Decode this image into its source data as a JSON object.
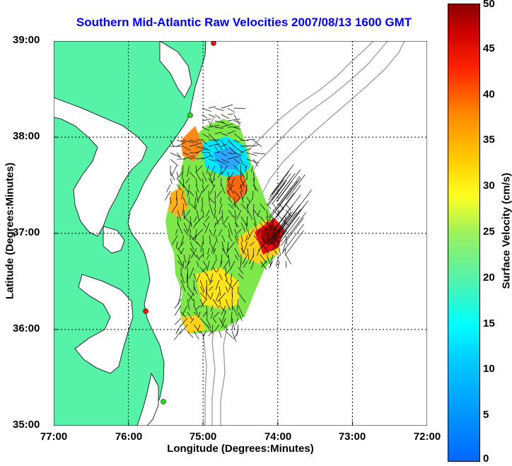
{
  "title": "Southern Mid-Atlantic Raw Velocities 2007/08/13 1600 GMT",
  "x_axis": {
    "label": "Longitude (Degrees:Minutes)",
    "ticks": [
      "77:00",
      "76:00",
      "75:00",
      "74:00",
      "73:00",
      "72:00"
    ]
  },
  "y_axis": {
    "label": "Latitude (Degrees:Minutes)",
    "ticks": [
      "39:00",
      "38:00",
      "37:00",
      "36:00",
      "35:00"
    ]
  },
  "colorbar": {
    "label": "Surface Velocity (cm/s)",
    "ticks": [
      "50",
      "45",
      "40",
      "35",
      "30",
      "25",
      "20",
      "15",
      "10",
      "5",
      "0"
    ],
    "min": 0,
    "max": 50
  },
  "colors": {
    "land": "#55f2a8",
    "bathymetry": "#9a9a9a",
    "station_red": "#ee1111",
    "station_green": "#22dd22",
    "title": "#0000ee"
  }
}
